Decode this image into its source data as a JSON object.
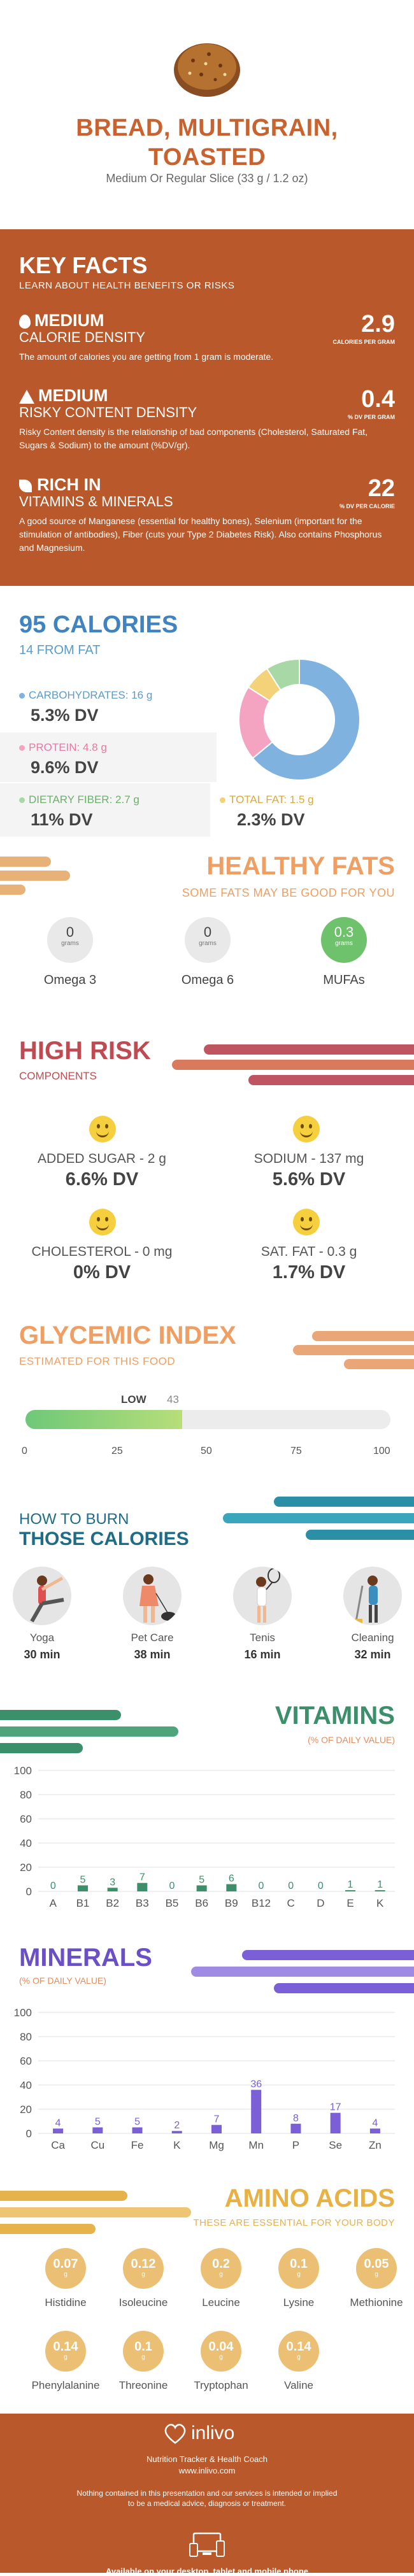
{
  "header": {
    "title_line1": "BREAD, MULTIGRAIN,",
    "title_line2": "TOASTED",
    "serving": "Medium Or Regular Slice (33 g / 1.2 oz)"
  },
  "key_facts": {
    "title": "KEY FACTS",
    "subtitle": "LEARN ABOUT HEALTH BENEFITS OR RISKS",
    "items": [
      {
        "level": "MEDIUM",
        "category": "CALORIE DENSITY",
        "value": "2.9",
        "unit": "CALORIES PER GRAM",
        "description": "The amount of calories you are getting from 1 gram is moderate.",
        "icon": "flame-icon"
      },
      {
        "level": "MEDIUM",
        "category": "RISKY CONTENT DENSITY",
        "value": "0.4",
        "unit": "% DV PER GRAM",
        "description": "Risky Content density is the relationship of bad components (Cholesterol, Saturated Fat, Sugars & Sodium) to the amount (%DV/gr).",
        "icon": "warning-icon"
      },
      {
        "level": "RICH IN",
        "category": "VITAMINS & MINERALS",
        "value": "22",
        "unit": "% DV PER CALORIE",
        "description": "A good source of Manganese (essential for healthy bones), Selenium (important for the stimulation of antibodies), Fiber (cuts your  Type 2 Diabetes Risk). Also contains Phosphorus and Magnesium.",
        "icon": "leaf-icon"
      }
    ]
  },
  "calories": {
    "title": "95 CALORIES",
    "from_fat": "14 FROM FAT",
    "carbs_label": "CARBOHYDRATES: 16 g",
    "carbs_dv": "5.3% DV",
    "protein_label": "PROTEIN: 4.8 g",
    "protein_dv": "9.6% DV",
    "fiber_label": "DIETARY FIBER: 2.7 g",
    "fiber_dv": "11% DV",
    "fat_label": "TOTAL FAT: 1.5 g",
    "fat_dv": "2.3% DV",
    "donut": [
      {
        "name": "carbs",
        "value": 64,
        "color": "#7fb2de"
      },
      {
        "name": "protein",
        "value": 20,
        "color": "#f4a3c0"
      },
      {
        "name": "fat",
        "value": 7,
        "color": "#f4d27a"
      },
      {
        "name": "fiber",
        "value": 9,
        "color": "#a7d8a6"
      }
    ]
  },
  "fats": {
    "title": "HEALTHY FATS",
    "subtitle": "SOME FATS MAY BE GOOD FOR YOU",
    "unit": "grams",
    "items": [
      {
        "name": "Omega 3",
        "value": "0"
      },
      {
        "name": "Omega 6",
        "value": "0"
      },
      {
        "name": "MUFAs",
        "value": "0.3"
      }
    ]
  },
  "high_risk": {
    "title": "HIGH RISK",
    "subtitle": "COMPONENTS",
    "items": [
      {
        "label": "ADDED SUGAR - 2 g",
        "dv": "6.6% DV"
      },
      {
        "label": "SODIUM - 137 mg",
        "dv": "5.6% DV"
      },
      {
        "label": "CHOLESTEROL - 0 mg",
        "dv": "0% DV"
      },
      {
        "label": "SAT. FAT - 0.3 g",
        "dv": "1.7% DV"
      }
    ]
  },
  "glycemic": {
    "title": "GLYCEMIC INDEX",
    "subtitle": "ESTIMATED FOR THIS FOOD",
    "level": "LOW",
    "value": "43",
    "ticks": [
      "0",
      "25",
      "50",
      "75",
      "100"
    ]
  },
  "burn": {
    "title_line1": "HOW TO BURN",
    "title_line2": "THOSE CALORIES",
    "activities": [
      {
        "name": "Yoga",
        "minutes": "30 min",
        "icon": "yoga-icon"
      },
      {
        "name": "Pet Care",
        "minutes": "38 min",
        "icon": "dog-walking-icon"
      },
      {
        "name": "Tenis",
        "minutes": "16 min",
        "icon": "tennis-icon"
      },
      {
        "name": "Cleaning",
        "minutes": "32 min",
        "icon": "cleaning-icon"
      }
    ]
  },
  "vitamins": {
    "title": "VITAMINS",
    "subtitle": "(% OF DAILY VALUE)",
    "chart_data": {
      "type": "bar",
      "categories": [
        "A",
        "B1",
        "B2",
        "B3",
        "B5",
        "B6",
        "B9",
        "B12",
        "C",
        "D",
        "E",
        "K"
      ],
      "values": [
        0,
        5,
        3,
        7,
        0,
        5,
        6,
        0,
        0,
        0,
        1,
        1
      ],
      "ylim": [
        0,
        100
      ],
      "yticks": [
        "0",
        "20",
        "40",
        "60",
        "80",
        "100"
      ],
      "color": "#3c8f6b"
    }
  },
  "minerals": {
    "title": "MINERALS",
    "subtitle": "(% OF DAILY VALUE)",
    "chart_data": {
      "type": "bar",
      "categories": [
        "Ca",
        "Cu",
        "Fe",
        "K",
        "Mg",
        "Mn",
        "P",
        "Se",
        "Zn"
      ],
      "values": [
        4,
        5,
        5,
        2,
        7,
        36,
        8,
        17,
        4
      ],
      "ylim": [
        0,
        100
      ],
      "yticks": [
        "0",
        "20",
        "40",
        "60",
        "80",
        "100"
      ],
      "color": "#7a5fd6"
    }
  },
  "amino": {
    "title": "AMINO ACIDS",
    "subtitle": "THESE ARE ESSENTIAL FOR YOUR BODY",
    "unit": "g",
    "items": [
      {
        "name": "Histidine",
        "value": "0.07"
      },
      {
        "name": "Isoleucine",
        "value": "0.12"
      },
      {
        "name": "Leucine",
        "value": "0.2"
      },
      {
        "name": "Lysine",
        "value": "0.1"
      },
      {
        "name": "Methionine",
        "value": "0.05"
      },
      {
        "name": "Phenylalanine",
        "value": "0.14"
      },
      {
        "name": "Threonine",
        "value": "0.1"
      },
      {
        "name": "Tryptophan",
        "value": "0.04"
      },
      {
        "name": "Valine",
        "value": "0.14"
      }
    ]
  },
  "footer": {
    "brand": "inlivo",
    "tagline": "Nutrition Tracker & Health Coach",
    "url": "www.inlivo.com",
    "disclaimer_1": "Nothing contained in this presentation and our services is intended or implied",
    "disclaimer_2": "to be a medical advice, diagnosis or treatment.",
    "available": "Available on your desktop, tablet and mobile phone"
  }
}
